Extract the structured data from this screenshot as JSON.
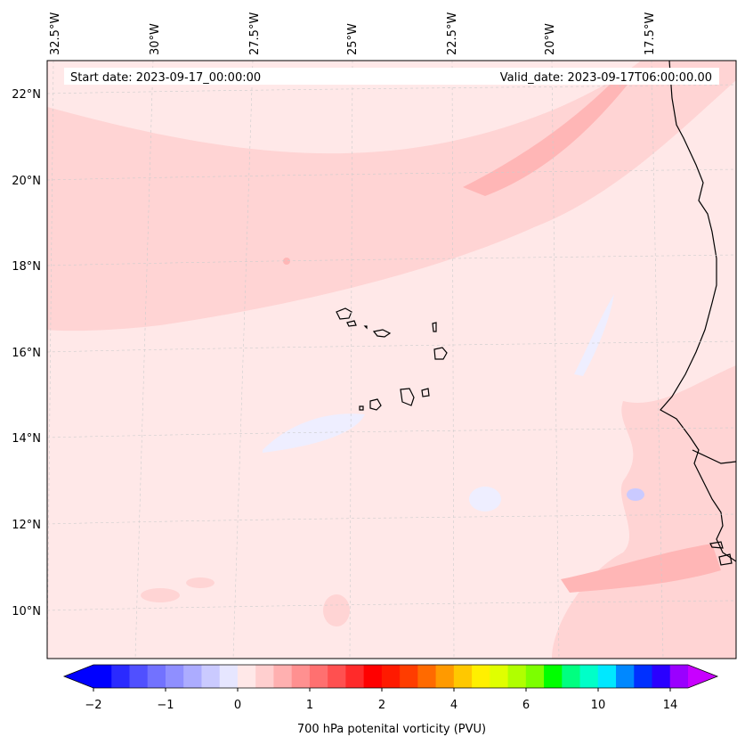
{
  "map": {
    "start_date": "Start date: 2023-09-17_00:00:00",
    "valid_date": "Valid_date: 2023-09-17T06:00:00.00",
    "lon_labels": [
      "32.5°W",
      "30°W",
      "27.5°W",
      "25°W",
      "22.5°W",
      "20°W",
      "17.5°W"
    ],
    "lat_labels": [
      "22°N",
      "20°N",
      "18°N",
      "16°N",
      "14°N",
      "12°N",
      "10°N"
    ],
    "background_color": "#ffe8e8"
  },
  "colorbar": {
    "label": "700 hPa potenital vorticity (PVU)",
    "tick_labels": [
      "−2",
      "−1",
      "0",
      "1",
      "2",
      "4",
      "6",
      "10",
      "14"
    ],
    "colors": [
      "#0000ff",
      "#2a2aff",
      "#5050ff",
      "#7272ff",
      "#8f8fff",
      "#acacff",
      "#cacaff",
      "#e6e6ff",
      "#ffe8e8",
      "#ffcfcf",
      "#ffb0b0",
      "#ff9090",
      "#ff7070",
      "#ff5050",
      "#ff2a2a",
      "#ff0000",
      "#ff1a00",
      "#ff3d00",
      "#ff6a00",
      "#ff9a00",
      "#ffc800",
      "#fff000",
      "#e0ff00",
      "#b0ff00",
      "#7cff00",
      "#00ff00",
      "#00ff80",
      "#00ffc8",
      "#00e8ff",
      "#0088ff",
      "#0030ff",
      "#2a00ff",
      "#9a00ff"
    ],
    "under_color": "#0000ff",
    "over_color": "#c800ff"
  }
}
